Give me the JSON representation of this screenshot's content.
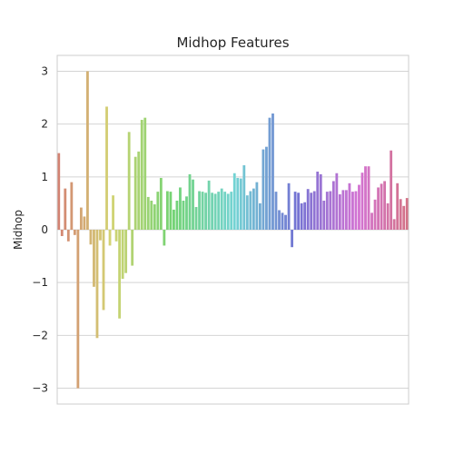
{
  "chart_data": {
    "type": "bar",
    "title": "Midhop Features",
    "xlabel": "",
    "ylabel": "Midhop",
    "ylim": [
      -3.3,
      3.3
    ],
    "yticks": [
      3,
      2,
      1,
      0,
      -1,
      -2,
      -3
    ],
    "grid": true,
    "palette": "husl",
    "values": [
      1.45,
      -0.12,
      0.78,
      -0.22,
      0.9,
      -0.1,
      -3.0,
      0.42,
      0.25,
      3.0,
      -0.28,
      -1.08,
      -2.05,
      -0.2,
      -1.52,
      2.33,
      -0.3,
      0.65,
      -0.22,
      -1.68,
      -0.93,
      -0.82,
      1.85,
      -0.68,
      1.38,
      1.48,
      2.08,
      2.12,
      0.62,
      0.55,
      0.48,
      0.72,
      0.98,
      -0.3,
      0.73,
      0.72,
      0.38,
      0.55,
      0.8,
      0.55,
      0.63,
      1.05,
      0.95,
      0.43,
      0.73,
      0.72,
      0.7,
      0.93,
      0.7,
      0.68,
      0.72,
      0.78,
      0.72,
      0.68,
      0.72,
      1.07,
      0.98,
      0.97,
      1.22,
      0.65,
      0.73,
      0.78,
      0.9,
      0.5,
      1.52,
      1.57,
      2.12,
      2.2,
      0.72,
      0.37,
      0.32,
      0.28,
      0.88,
      -0.33,
      0.72,
      0.7,
      0.5,
      0.52,
      0.77,
      0.7,
      0.73,
      1.1,
      1.05,
      0.55,
      0.72,
      0.73,
      0.92,
      1.07,
      0.67,
      0.75,
      0.75,
      0.88,
      0.72,
      0.73,
      0.85,
      1.08,
      1.2,
      1.2,
      0.32,
      0.57,
      0.8,
      0.87,
      0.92,
      0.5,
      1.5,
      0.2,
      0.88,
      0.58,
      0.45,
      0.6
    ]
  }
}
